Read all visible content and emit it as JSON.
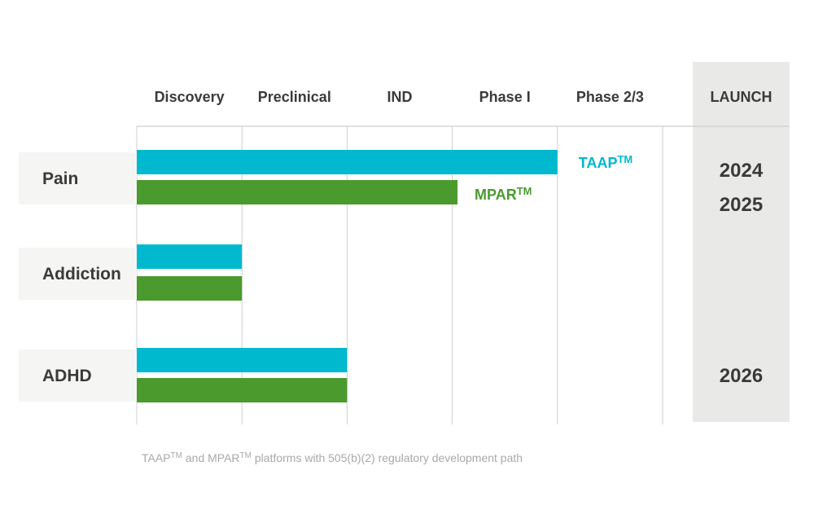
{
  "chart_data": {
    "type": "bar",
    "orientation": "horizontal",
    "title": "",
    "phases": [
      "Discovery",
      "Preclinical",
      "IND",
      "Phase I",
      "Phase 2/3"
    ],
    "launch_header": "LAUNCH",
    "categories": [
      "Pain",
      "Addiction",
      "ADHD"
    ],
    "series": [
      {
        "name": "TAAP",
        "label": "TAAP",
        "superscript": "TM",
        "color": "#00b9cf",
        "values": [
          4.0,
          1.0,
          2.0
        ]
      },
      {
        "name": "MPAR",
        "label": "MPAR",
        "superscript": "TM",
        "color": "#4a9a2e",
        "values": [
          3.05,
          1.0,
          2.0
        ]
      }
    ],
    "launch_years": [
      {
        "category": "Pain",
        "series": "TAAP",
        "year": "2024"
      },
      {
        "category": "Pain",
        "series": "MPAR",
        "year": "2025"
      },
      {
        "category": "ADHD",
        "series": "both",
        "year": "2026"
      }
    ],
    "value_units": "phases completed",
    "xlim": [
      0,
      5
    ],
    "footnote": {
      "parts": [
        "TAAP",
        "TM",
        " and MPAR",
        "TM",
        " platforms with 505(b)(2) regulatory development path"
      ]
    }
  },
  "colors": {
    "taap": "#00b9cf",
    "mpar": "#4a9a2e",
    "category_bg": "#f5f5f4",
    "launch_bg": "#e9e9e8",
    "gridline": "#cfcfcf",
    "text": "#3a3a3a",
    "footnote": "#a8a8a8"
  }
}
